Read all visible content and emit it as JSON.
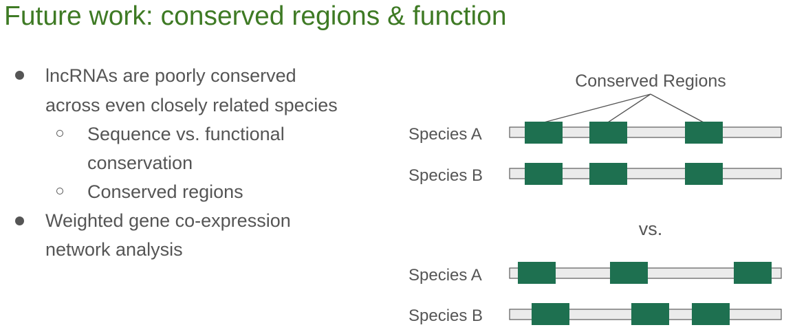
{
  "slide": {
    "title": "Future work: conserved regions & function",
    "bullets": [
      {
        "lines": [
          "lncRNAs are poorly conserved",
          "across even closely related species"
        ]
      },
      {
        "lines": [
          "Sequence vs. functional",
          "conservation"
        ]
      },
      {
        "lines": [
          "Conserved regions"
        ]
      },
      {
        "lines": [
          "Weighted gene co-expression",
          "network analysis"
        ]
      }
    ]
  },
  "diagram": {
    "conserved_label": "Conserved Regions",
    "vs_label": "vs.",
    "top_group": {
      "species_a": "Species A",
      "species_b": "Species B"
    },
    "bottom_group": {
      "species_a": "Species A",
      "species_b": "Species B"
    },
    "colors": {
      "region": "#1e7050",
      "track": "#ebebeb",
      "track_border": "#5a5a5a",
      "title": "#3e7a24",
      "text": "#555555"
    }
  }
}
